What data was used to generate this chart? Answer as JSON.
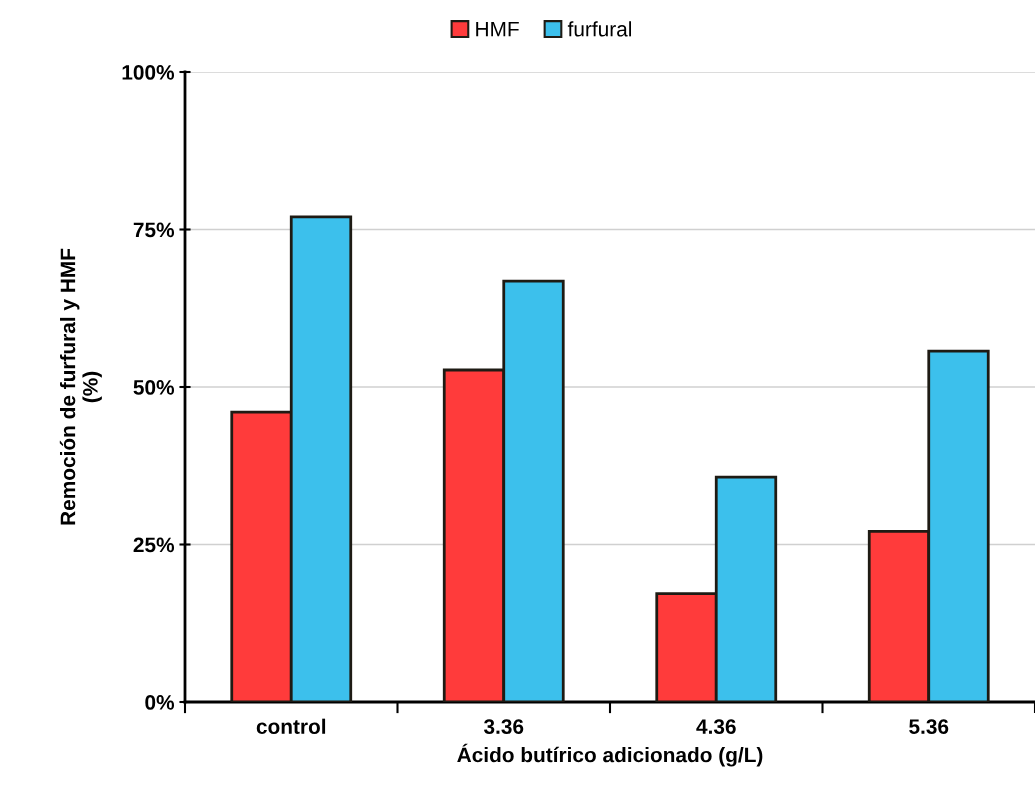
{
  "chart_data": {
    "type": "bar",
    "xlabel": "Ácido butírico adicionado (g/L)",
    "ylabel": "Remoción de furfural y HMF\n(%)",
    "categories": [
      "control",
      "3.36",
      "4.36",
      "5.36"
    ],
    "series": [
      {
        "name": "HMF",
        "color": "#ff3b3b",
        "values": [
          46.0,
          52.7,
          17.2,
          27.1
        ]
      },
      {
        "name": "furfural",
        "color": "#3cc0ec",
        "values": [
          77.0,
          66.8,
          35.7,
          55.7
        ]
      }
    ],
    "ylim": [
      0,
      100
    ],
    "yticks": [
      {
        "value": 0,
        "label": "0%"
      },
      {
        "value": 25,
        "label": "25%"
      },
      {
        "value": 50,
        "label": "50%"
      },
      {
        "value": 75,
        "label": "75%"
      },
      {
        "value": 100,
        "label": "100%"
      }
    ],
    "grid": "y",
    "legend": "top"
  }
}
